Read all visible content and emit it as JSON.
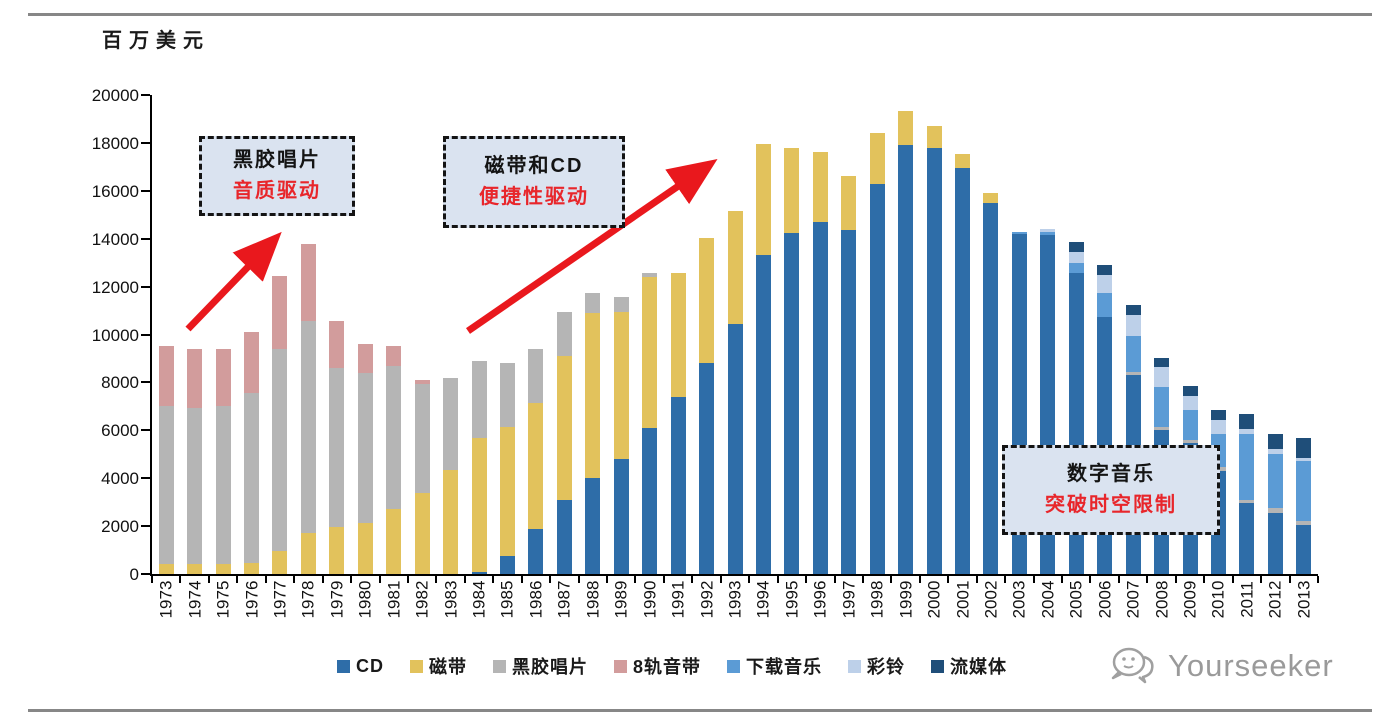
{
  "chart_data": {
    "type": "bar",
    "subtype": "stacked",
    "ylabel": "百万美元",
    "ylim": [
      0,
      20000
    ],
    "ytick_step": 2000,
    "grid": false,
    "legend_position": "bottom",
    "x": [
      1973,
      1974,
      1975,
      1976,
      1977,
      1978,
      1979,
      1980,
      1981,
      1982,
      1983,
      1984,
      1985,
      1986,
      1987,
      1988,
      1989,
      1990,
      1991,
      1992,
      1993,
      1994,
      1995,
      1996,
      1997,
      1998,
      1999,
      2000,
      2001,
      2002,
      2003,
      2004,
      2005,
      2006,
      2007,
      2008,
      2009,
      2010,
      2011,
      2012,
      2013
    ],
    "series": [
      {
        "name": "CD",
        "color": "#2e6da8",
        "values": [
          0,
          0,
          0,
          0,
          0,
          0,
          0,
          0,
          0,
          0,
          0,
          100,
          750,
          1900,
          3100,
          4000,
          4800,
          6100,
          7400,
          8800,
          10450,
          13300,
          14250,
          14700,
          14350,
          16300,
          17900,
          17800,
          16950,
          15500,
          14200,
          14150,
          12550,
          10750,
          8300,
          6000,
          5450,
          4300,
          2950,
          2550,
          2050
        ]
      },
      {
        "name": "磁带",
        "color": "#e2c25c",
        "values": [
          400,
          400,
          400,
          450,
          950,
          1700,
          1950,
          2150,
          2700,
          3400,
          4350,
          5600,
          5400,
          5250,
          6000,
          6900,
          6150,
          6300,
          5150,
          5250,
          4700,
          4650,
          3550,
          2900,
          2250,
          2100,
          1450,
          900,
          600,
          400,
          0,
          0,
          0,
          0,
          0,
          0,
          0,
          0,
          0,
          0,
          0
        ]
      },
      {
        "name": "黑胶唱片",
        "color": "#b5b5b5",
        "values": [
          6600,
          6550,
          6600,
          7100,
          8450,
          8850,
          6650,
          6250,
          6000,
          4550,
          3850,
          3200,
          2650,
          2250,
          1850,
          850,
          600,
          150,
          0,
          0,
          0,
          0,
          0,
          0,
          0,
          0,
          0,
          0,
          0,
          0,
          0,
          0,
          0,
          0,
          150,
          150,
          150,
          150,
          150,
          200,
          150
        ]
      },
      {
        "name": "8轨音带",
        "color": "#d29c9c",
        "values": [
          2500,
          2450,
          2400,
          2550,
          3050,
          3250,
          1950,
          1200,
          800,
          150,
          0,
          0,
          0,
          0,
          0,
          0,
          0,
          0,
          0,
          0,
          0,
          0,
          0,
          0,
          0,
          0,
          0,
          0,
          0,
          0,
          0,
          0,
          0,
          0,
          0,
          0,
          0,
          0,
          0,
          0,
          0
        ]
      },
      {
        "name": "下载音乐",
        "color": "#5b9bd5",
        "values": [
          0,
          0,
          0,
          0,
          0,
          0,
          0,
          0,
          0,
          0,
          0,
          0,
          0,
          0,
          0,
          0,
          0,
          0,
          0,
          0,
          0,
          0,
          0,
          0,
          0,
          0,
          0,
          0,
          0,
          0,
          100,
          150,
          450,
          1000,
          1500,
          1650,
          1250,
          1400,
          2750,
          2250,
          2500
        ]
      },
      {
        "name": "彩铃",
        "color": "#bdd0e9",
        "values": [
          0,
          0,
          0,
          0,
          0,
          0,
          0,
          0,
          0,
          0,
          0,
          0,
          0,
          0,
          0,
          0,
          0,
          0,
          0,
          0,
          0,
          0,
          0,
          0,
          0,
          0,
          0,
          0,
          0,
          0,
          0,
          100,
          450,
          750,
          850,
          850,
          600,
          600,
          200,
          200,
          150
        ]
      },
      {
        "name": "流媒体",
        "color": "#1f4e79",
        "values": [
          0,
          0,
          0,
          0,
          0,
          0,
          0,
          0,
          0,
          0,
          0,
          0,
          0,
          0,
          0,
          0,
          0,
          0,
          0,
          0,
          0,
          0,
          0,
          0,
          0,
          0,
          0,
          0,
          0,
          0,
          0,
          0,
          400,
          400,
          450,
          350,
          400,
          400,
          650,
          650,
          850
        ]
      }
    ]
  },
  "annotations": {
    "box1": {
      "line1": "黑胶唱片",
      "line2": "音质驱动"
    },
    "box2": {
      "line1": "磁带和CD",
      "line2": "便捷性驱动"
    },
    "box3": {
      "line1": "数字音乐",
      "line2": "突破时空限制"
    }
  },
  "colors": {
    "arrow_red": "#e9181d",
    "annotation_bg": "#dae3f0",
    "annotation_text_red": "#e8262b",
    "rule_gray": "#878787",
    "watermark_gray": "#9a9a9a"
  },
  "watermark": {
    "text": "Yourseeker"
  }
}
